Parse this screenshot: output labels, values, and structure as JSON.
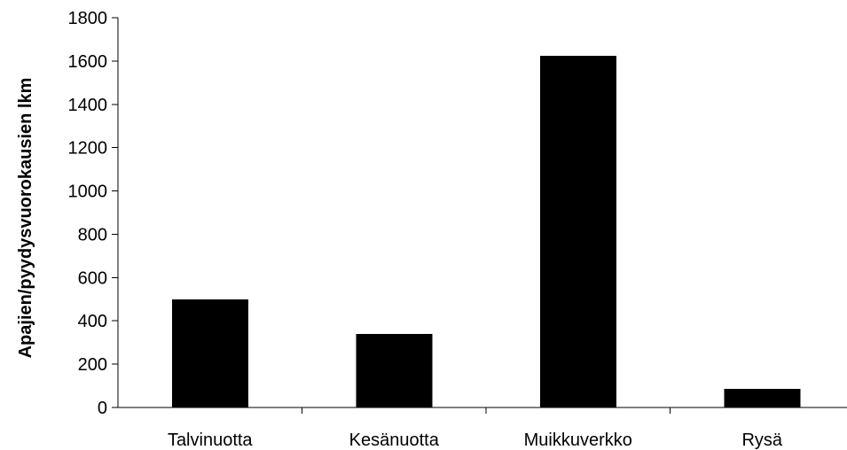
{
  "chart_data": {
    "type": "bar",
    "title": "",
    "xlabel": "",
    "ylabel": "Apajien/pyydysvuorokausien lkm",
    "categories": [
      "Talvinuotta",
      "Kesänuotta",
      "Muikkuverkko",
      "Rysä"
    ],
    "values": [
      500,
      340,
      1625,
      85
    ],
    "ylim": [
      0,
      1800
    ],
    "yticks": [
      0,
      200,
      400,
      600,
      800,
      1000,
      1200,
      1400,
      1600,
      1800
    ],
    "grid": false,
    "legend": "none",
    "bar_color": "#000000"
  }
}
